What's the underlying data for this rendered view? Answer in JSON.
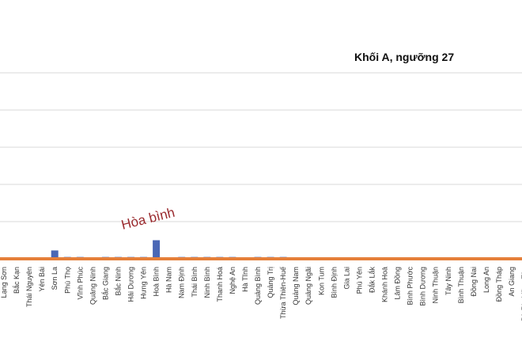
{
  "chart_data": {
    "type": "bar",
    "title": "Khối A, ngưỡng 27",
    "annotation": {
      "text": "Hòa bình",
      "category": "Hoà Bình"
    },
    "grid": true,
    "legend": "none",
    "colors": {
      "bars": "#4a67b5",
      "reference_line": "#e57f3a",
      "grid": "#d9d9d9",
      "annotation": "#9a2a2e"
    },
    "ylim": [
      0,
      100
    ],
    "reference_value": 0,
    "categories": [
      "Lạng Sơn",
      "Bắc Kạn",
      "Thái Nguyên",
      "Yên Bái",
      "Sơn La",
      "Phú Thọ",
      "Vĩnh Phúc",
      "Quảng Ninh",
      "Bắc Giang",
      "Bắc Ninh",
      "Hải Dương",
      "Hưng Yên",
      "Hoà Bình",
      "Hà Nam",
      "Nam Định",
      "Thái Bình",
      "Ninh Bình",
      "Thanh Hoá",
      "Nghệ An",
      "Hà Tĩnh",
      "Quảng Bình",
      "Quảng Trị",
      "Thừa Thiên-Huế",
      "Quảng Nam",
      "Quảng Ngãi",
      "Kon Tum",
      "Bình Định",
      "Gia Lai",
      "Phú Yên",
      "Đắk Lắk",
      "Khánh Hoà",
      "Lâm Đồng",
      "Bình Phước",
      "Bình Dương",
      "Ninh Thuận",
      "Tây Ninh",
      "Bình Thuận",
      "Đồng Nai",
      "Long An",
      "Đồng Tháp",
      "An Giang",
      "Bà Rịa-Vũng Tàu"
    ],
    "values": [
      0,
      0,
      0,
      0,
      4.5,
      1,
      1,
      0,
      1,
      1,
      1,
      1,
      10,
      0,
      1,
      1,
      1,
      1,
      1,
      0,
      1,
      1,
      1,
      0,
      0,
      0,
      0,
      0,
      0,
      0,
      0,
      0,
      0,
      0,
      0,
      0,
      0,
      0,
      0,
      0,
      0,
      0
    ]
  }
}
